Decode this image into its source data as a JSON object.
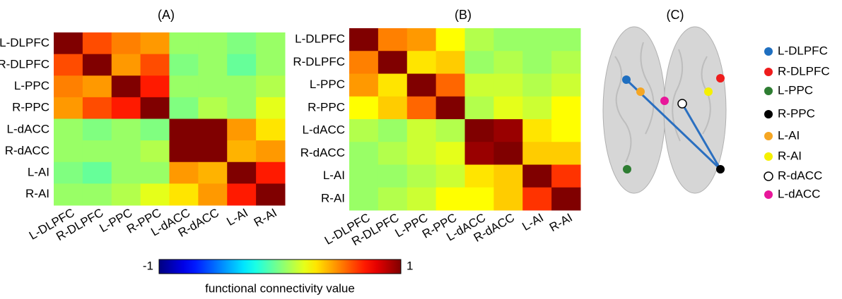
{
  "chart_data": [
    {
      "type": "heatmap",
      "title": "(A)",
      "colormap": "jet",
      "zlim": [
        -1,
        1
      ],
      "x": [
        "L-DLPFC",
        "R-DLPFC",
        "L-PPC",
        "R-PPC",
        "L-dACC",
        "R-dACC",
        "L-AI",
        "R-AI"
      ],
      "y": [
        "L-DLPFC",
        "R-DLPFC",
        "L-PPC",
        "R-PPC",
        "L-dACC",
        "R-dACC",
        "L-AI",
        "R-AI"
      ],
      "values": [
        [
          1,
          0.6,
          0.5,
          0.45,
          0.05,
          0.05,
          0.0,
          0.05
        ],
        [
          0.6,
          1,
          0.45,
          0.6,
          0.0,
          0.05,
          -0.05,
          0.05
        ],
        [
          0.5,
          0.45,
          1,
          0.7,
          0.05,
          0.05,
          0.05,
          0.1
        ],
        [
          0.45,
          0.6,
          0.7,
          1,
          0.0,
          0.1,
          0.05,
          0.2
        ],
        [
          0.05,
          0.0,
          0.05,
          0.0,
          1,
          1,
          0.45,
          0.3
        ],
        [
          0.05,
          0.05,
          0.05,
          0.1,
          1,
          1,
          0.4,
          0.45
        ],
        [
          0.0,
          -0.05,
          0.05,
          0.05,
          0.45,
          0.4,
          1,
          0.7
        ],
        [
          0.05,
          0.05,
          0.1,
          0.2,
          0.3,
          0.45,
          0.7,
          1
        ]
      ]
    },
    {
      "type": "heatmap",
      "title": "(B)",
      "colormap": "jet",
      "zlim": [
        -1,
        1
      ],
      "x": [
        "L-DLPFC",
        "R-DLPFC",
        "L-PPC",
        "R-PPC",
        "L-dACC",
        "R-dACC",
        "L-AI",
        "R-AI"
      ],
      "y": [
        "L-DLPFC",
        "R-DLPFC",
        "L-PPC",
        "R-PPC",
        "L-dACC",
        "R-dACC",
        "L-AI",
        "R-AI"
      ],
      "values": [
        [
          1,
          0.5,
          0.45,
          0.25,
          0.1,
          0.05,
          0.05,
          0.05
        ],
        [
          0.5,
          1,
          0.3,
          0.35,
          0.05,
          0.1,
          0.05,
          0.1
        ],
        [
          0.45,
          0.3,
          1,
          0.55,
          0.15,
          0.15,
          0.1,
          0.15
        ],
        [
          0.25,
          0.35,
          0.55,
          1,
          0.1,
          0.2,
          0.15,
          0.25
        ],
        [
          0.1,
          0.05,
          0.15,
          0.1,
          1,
          0.95,
          0.3,
          0.25
        ],
        [
          0.05,
          0.1,
          0.15,
          0.2,
          0.95,
          1,
          0.35,
          0.35
        ],
        [
          0.05,
          0.05,
          0.1,
          0.15,
          0.3,
          0.35,
          1,
          0.65
        ],
        [
          0.05,
          0.1,
          0.15,
          0.25,
          0.25,
          0.35,
          0.65,
          1
        ]
      ]
    }
  ],
  "colorbar": {
    "lim": [
      -1,
      1
    ],
    "ticks": [
      -1,
      1
    ],
    "label": "functional connectivity value"
  },
  "panel_c": {
    "title": "(C)",
    "legend": [
      {
        "label": "L-DLPFC",
        "color": "#1f6fc0"
      },
      {
        "label": "R-DLPFC",
        "color": "#ee1c1c"
      },
      {
        "label": "L-PPC",
        "color": "#2e7d32"
      },
      {
        "label": "R-PPC",
        "color": "#000000"
      },
      {
        "label": "L-AI",
        "color": "#f5a623"
      },
      {
        "label": "R-AI",
        "color": "#f5f000"
      },
      {
        "label": "R-dACC",
        "color": "#ffffff"
      },
      {
        "label": "L-dACC",
        "color": "#e8179a"
      }
    ]
  }
}
